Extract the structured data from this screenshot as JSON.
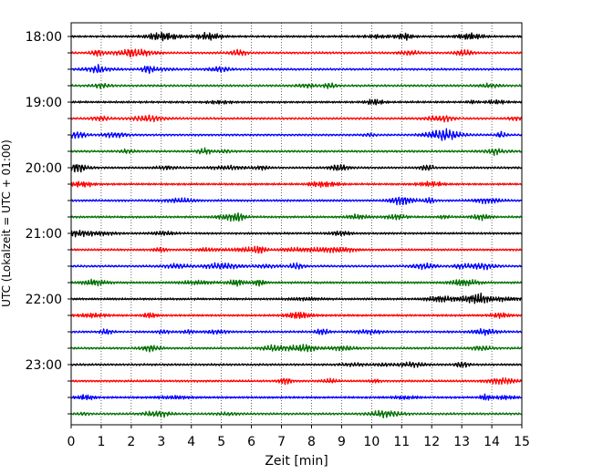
{
  "chart_data": {
    "type": "line",
    "xlabel": "Zeit  [min]",
    "ylabel": "UTC (Lokalzeit = UTC + 01:00)",
    "xlim": [
      0,
      15
    ],
    "x_ticks": [
      0,
      1,
      2,
      3,
      4,
      5,
      6,
      7,
      8,
      9,
      10,
      11,
      12,
      13,
      14,
      15
    ],
    "x_tick_labels": [
      "0",
      "1",
      "2",
      "3",
      "4",
      "5",
      "6",
      "7",
      "8",
      "9",
      "10",
      "11",
      "12",
      "13",
      "14",
      "15"
    ],
    "y_tick_labels": [
      "18:00",
      "19:00",
      "20:00",
      "21:00",
      "22:00",
      "23:00"
    ],
    "grid_x": true,
    "line_color_cycle": [
      "#000000",
      "#ff0000",
      "#0000ff",
      "#007000"
    ],
    "traces": [
      {
        "start": "18:00",
        "color": "#000000"
      },
      {
        "start": "18:15",
        "color": "#ff0000"
      },
      {
        "start": "18:30",
        "color": "#0000ff"
      },
      {
        "start": "18:45",
        "color": "#007000"
      },
      {
        "start": "19:00",
        "color": "#000000"
      },
      {
        "start": "19:15",
        "color": "#ff0000"
      },
      {
        "start": "19:30",
        "color": "#0000ff"
      },
      {
        "start": "19:45",
        "color": "#007000"
      },
      {
        "start": "20:00",
        "color": "#000000"
      },
      {
        "start": "20:15",
        "color": "#ff0000"
      },
      {
        "start": "20:30",
        "color": "#0000ff"
      },
      {
        "start": "20:45",
        "color": "#007000"
      },
      {
        "start": "21:00",
        "color": "#000000"
      },
      {
        "start": "21:15",
        "color": "#ff0000"
      },
      {
        "start": "21:30",
        "color": "#0000ff"
      },
      {
        "start": "21:45",
        "color": "#007000"
      },
      {
        "start": "22:00",
        "color": "#000000"
      },
      {
        "start": "22:15",
        "color": "#ff0000"
      },
      {
        "start": "22:30",
        "color": "#0000ff"
      },
      {
        "start": "22:45",
        "color": "#007000"
      },
      {
        "start": "23:00",
        "color": "#000000"
      },
      {
        "start": "23:15",
        "color": "#ff0000"
      },
      {
        "start": "23:30",
        "color": "#0000ff"
      },
      {
        "start": "23:45",
        "color": "#007000"
      }
    ]
  }
}
